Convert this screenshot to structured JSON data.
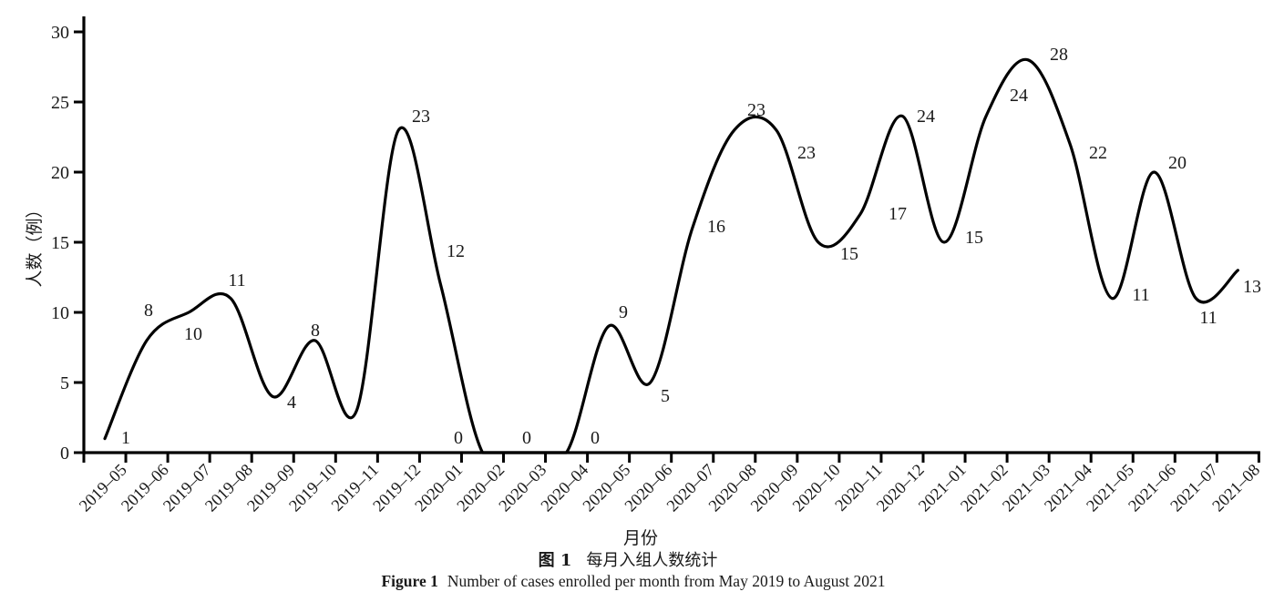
{
  "figure": {
    "xlabel": "月份",
    "ylabel": "人数（例）",
    "caption_cn_label": "图 1",
    "caption_cn_text": "每月入组人数统计",
    "caption_en_label": "Figure 1",
    "caption_en_text": "Number of cases enrolled per month from May 2019 to August 2021"
  },
  "chart_data": {
    "type": "line",
    "title": "每月入组人数统计 / Number of cases enrolled per month from May 2019 to August 2021",
    "xlabel": "月份",
    "ylabel": "人数（例）",
    "ylim": [
      0,
      30
    ],
    "yticks": [
      0,
      5,
      10,
      15,
      20,
      25,
      30
    ],
    "grid": false,
    "legend": null,
    "smooth": true,
    "line_color": "#000000",
    "categories": [
      "2019–05",
      "2019–06",
      "2019–07",
      "2019–08",
      "2019–09",
      "2019–10",
      "2019–11",
      "2019–12",
      "2020–01",
      "2020–02",
      "2020–03",
      "2020–04",
      "2020–05",
      "2020–06",
      "2020–07",
      "2020–08",
      "2020–09",
      "2020–10",
      "2020–11",
      "2020–12",
      "2021–01",
      "2021–02",
      "2021–03",
      "2021–04",
      "2021–05",
      "2021–06",
      "2021–07",
      "2021–08"
    ],
    "values": [
      1,
      8,
      10,
      11,
      4,
      8,
      3,
      23,
      12,
      0,
      0,
      0,
      9,
      5,
      16,
      23,
      23,
      15,
      17,
      24,
      15,
      24,
      28,
      22,
      11,
      20,
      11,
      13
    ],
    "data_labels": [
      "1",
      "8",
      "10",
      "11",
      "4",
      "8",
      "",
      "23",
      "12",
      "0",
      "0",
      "0",
      "9",
      "5",
      "16",
      "23",
      "23",
      "15",
      "17",
      "24",
      "15",
      "24",
      "28",
      "22",
      "11",
      "20",
      "11",
      "13"
    ],
    "label_positions": [
      [
        138,
        480
      ],
      [
        163,
        340
      ],
      [
        212,
        366
      ],
      [
        260,
        307
      ],
      [
        320,
        441
      ],
      [
        346,
        362
      ],
      null,
      [
        462,
        127
      ],
      [
        500,
        275
      ],
      [
        503,
        480
      ],
      [
        578,
        480
      ],
      [
        653,
        480
      ],
      [
        684,
        342
      ],
      [
        730,
        434
      ],
      [
        786,
        248
      ],
      [
        830,
        120
      ],
      [
        885,
        167
      ],
      [
        932,
        278
      ],
      [
        985,
        234
      ],
      [
        1016,
        127
      ],
      [
        1069,
        260
      ],
      [
        1118,
        104
      ],
      [
        1162,
        59
      ],
      [
        1205,
        167
      ],
      [
        1252,
        323
      ],
      [
        1292,
        178
      ],
      [
        1326,
        348
      ],
      [
        1374,
        314
      ]
    ]
  }
}
